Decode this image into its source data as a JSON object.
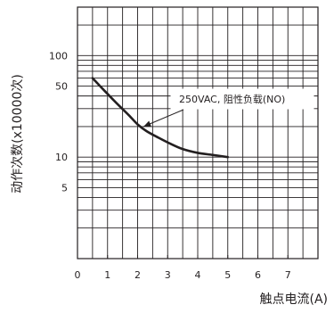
{
  "chart_data": {
    "type": "line",
    "xlabel": "触点电流(A)",
    "ylabel": "动作次数(x10000次)",
    "x_ticks": [
      "0",
      "1",
      "2",
      "3",
      "4",
      "5",
      "6",
      "7"
    ],
    "y_ticks": [
      {
        "value": 100,
        "label": "100"
      },
      {
        "value": 50,
        "label": "50"
      },
      {
        "value": 10,
        "label": "10"
      },
      {
        "value": 5,
        "label": "5"
      }
    ],
    "xlim": [
      0,
      8
    ],
    "ylim": [
      1,
      300
    ],
    "y_scale": "log",
    "grid": true,
    "series": [
      {
        "name": "250VAC, 阻性负载(NO)",
        "color": "#231f20",
        "points": [
          [
            0.5,
            60
          ],
          [
            0.9,
            45
          ],
          [
            1.3,
            34
          ],
          [
            1.7,
            26
          ],
          [
            2.0,
            21
          ],
          [
            2.3,
            18
          ],
          [
            2.7,
            15.5
          ],
          [
            3.1,
            13.5
          ],
          [
            3.5,
            12
          ],
          [
            4.0,
            11
          ],
          [
            4.5,
            10.5
          ],
          [
            5.0,
            10
          ]
        ]
      }
    ],
    "annotations": [
      {
        "text": "250VAC, 阻性负载(NO)",
        "points_to": [
          2.2,
          20
        ]
      }
    ]
  }
}
